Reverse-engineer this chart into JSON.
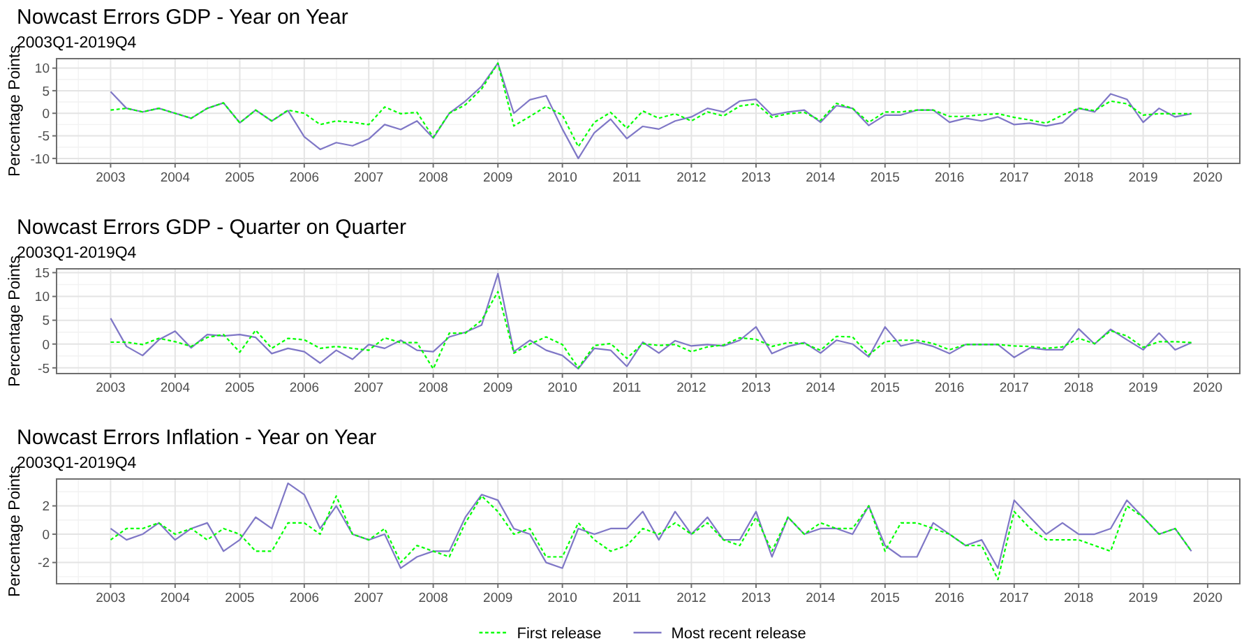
{
  "chart_data": [
    {
      "type": "line",
      "title": "Nowcast Errors GDP - Year on Year",
      "subtitle": "2003Q1-2019Q4",
      "ylabel": "Percentage Points",
      "x": [
        "2003-01",
        "2003-04",
        "2003-07",
        "2003-10",
        "2004-01",
        "2004-04",
        "2004-07",
        "2004-10",
        "2005-01",
        "2005-04",
        "2005-07",
        "2005-10",
        "2006-01",
        "2006-04",
        "2006-07",
        "2006-10",
        "2007-01",
        "2007-04",
        "2007-07",
        "2007-10",
        "2008-01",
        "2008-04",
        "2008-07",
        "2008-10",
        "2009-01",
        "2009-04",
        "2009-07",
        "2009-10",
        "2010-01",
        "2010-04",
        "2010-07",
        "2010-10",
        "2011-01",
        "2011-04",
        "2011-07",
        "2011-10",
        "2012-01",
        "2012-04",
        "2012-07",
        "2012-10",
        "2013-01",
        "2013-04",
        "2013-07",
        "2013-10",
        "2014-01",
        "2014-04",
        "2014-07",
        "2014-10",
        "2015-01",
        "2015-04",
        "2015-07",
        "2015-10",
        "2016-01",
        "2016-04",
        "2016-07",
        "2016-10",
        "2017-01",
        "2017-04",
        "2017-07",
        "2017-10",
        "2018-01",
        "2018-04",
        "2018-07",
        "2018-10",
        "2019-01",
        "2019-04",
        "2019-07",
        "2019-10"
      ],
      "xlim": [
        "2002-03",
        "2020-07"
      ],
      "xticks": [
        "2003",
        "2004",
        "2005",
        "2006",
        "2007",
        "2008",
        "2009",
        "2010",
        "2011",
        "2012",
        "2013",
        "2014",
        "2015",
        "2016",
        "2017",
        "2018",
        "2019",
        "2020"
      ],
      "ylim": [
        -11.1,
        12.1
      ],
      "yticks": [
        -10,
        -5,
        0,
        5,
        10
      ],
      "grid": true,
      "series": [
        {
          "color": "#00ff00",
          "line_style": "dashed",
          "values": [
            0.7,
            1.1,
            0.3,
            1.1,
            0,
            -1.1,
            1.1,
            2.3,
            -2.1,
            0.7,
            -1.7,
            0.7,
            0,
            -2.5,
            -1.7,
            -2.0,
            -2.5,
            1.4,
            -0.1,
            0.2,
            -5.3,
            0,
            1.9,
            5.4,
            11.1,
            -2.8,
            -0.7,
            1.5,
            -0.4,
            -7.4,
            -2.0,
            0.2,
            -3.3,
            0.5,
            -1.1,
            -0.1,
            -1.7,
            0.3,
            -0.6,
            1.6,
            2.1,
            -0.9,
            -0.1,
            0.2,
            -1.6,
            2.2,
            1.1,
            -2.0,
            0.3,
            0.3,
            0.7,
            0.7,
            -0.7,
            -0.7,
            -0.3,
            -0.1,
            -0.9,
            -1.5,
            -2.2,
            -0.4,
            1.1,
            0.6,
            2.7,
            2.1,
            -0.4,
            -0.1,
            -0.1,
            -0.1
          ]
        },
        {
          "color": "#7f77c6",
          "line_style": "solid",
          "values": [
            4.8,
            1.1,
            0.3,
            1.1,
            0,
            -1.1,
            1.1,
            2.3,
            -2.1,
            0.7,
            -1.7,
            0.6,
            -5.2,
            -8.0,
            -6.5,
            -7.2,
            -5.7,
            -2.5,
            -3.6,
            -1.7,
            -5.5,
            0,
            2.7,
            6.0,
            11.1,
            0,
            3.0,
            3.9,
            -3.5,
            -10.0,
            -4.3,
            -1.3,
            -5.6,
            -2.9,
            -3.5,
            -1.7,
            -0.8,
            1.1,
            0.3,
            2.7,
            3.1,
            -0.4,
            0.3,
            0.7,
            -2.0,
            1.7,
            1.1,
            -2.7,
            -0.4,
            -0.4,
            0.7,
            0.7,
            -2.0,
            -1.1,
            -1.7,
            -0.8,
            -2.5,
            -2.2,
            -2.8,
            -2.1,
            1.1,
            0.3,
            4.3,
            3.1,
            -2.0,
            1.1,
            -0.8,
            -0.1
          ]
        }
      ]
    },
    {
      "type": "line",
      "title": "Nowcast Errors GDP - Quarter on Quarter",
      "subtitle": "2003Q1-2019Q4",
      "ylabel": "Percentage Points",
      "x": [
        "2003-01",
        "2003-04",
        "2003-07",
        "2003-10",
        "2004-01",
        "2004-04",
        "2004-07",
        "2004-10",
        "2005-01",
        "2005-04",
        "2005-07",
        "2005-10",
        "2006-01",
        "2006-04",
        "2006-07",
        "2006-10",
        "2007-01",
        "2007-04",
        "2007-07",
        "2007-10",
        "2008-01",
        "2008-04",
        "2008-07",
        "2008-10",
        "2009-01",
        "2009-04",
        "2009-07",
        "2009-10",
        "2010-01",
        "2010-04",
        "2010-07",
        "2010-10",
        "2011-01",
        "2011-04",
        "2011-07",
        "2011-10",
        "2012-01",
        "2012-04",
        "2012-07",
        "2012-10",
        "2013-01",
        "2013-04",
        "2013-07",
        "2013-10",
        "2014-01",
        "2014-04",
        "2014-07",
        "2014-10",
        "2015-01",
        "2015-04",
        "2015-07",
        "2015-10",
        "2016-01",
        "2016-04",
        "2016-07",
        "2016-10",
        "2017-01",
        "2017-04",
        "2017-07",
        "2017-10",
        "2018-01",
        "2018-04",
        "2018-07",
        "2018-10",
        "2019-01",
        "2019-04",
        "2019-07",
        "2019-10"
      ],
      "xlim": [
        "2002-03",
        "2020-07"
      ],
      "xticks": [
        "2003",
        "2004",
        "2005",
        "2006",
        "2007",
        "2008",
        "2009",
        "2010",
        "2011",
        "2012",
        "2013",
        "2014",
        "2015",
        "2016",
        "2017",
        "2018",
        "2019",
        "2020"
      ],
      "ylim": [
        -6.2,
        15.8
      ],
      "yticks": [
        -5,
        0,
        5,
        10,
        15
      ],
      "grid": true,
      "series": [
        {
          "color": "#00ff00",
          "line_style": "dashed",
          "values": [
            0.4,
            0.4,
            -0.1,
            1.2,
            0.5,
            -0.5,
            1.4,
            2.0,
            -1.7,
            2.9,
            -0.9,
            1.2,
            0.9,
            -0.9,
            -0.5,
            -0.9,
            -1.3,
            1.3,
            0.3,
            0.3,
            -5.2,
            2.3,
            2.3,
            5.0,
            11.0,
            -1.9,
            0,
            1.5,
            -0.1,
            -5.0,
            -0.3,
            0.1,
            -3.0,
            0.1,
            -0.3,
            -0.1,
            -1.6,
            -0.6,
            -0.2,
            1.3,
            1.0,
            -0.5,
            0.3,
            0.1,
            -1.3,
            1.6,
            1.5,
            -2.3,
            0.5,
            0.8,
            0.8,
            0.1,
            -1.2,
            -0.1,
            -0.1,
            -0.1,
            -0.4,
            -0.5,
            -0.9,
            -0.6,
            1.2,
            0.1,
            2.8,
            1.7,
            -0.7,
            0.5,
            0.5,
            0.3
          ]
        },
        {
          "color": "#7f77c6",
          "line_style": "solid",
          "values": [
            5.4,
            -0.5,
            -2.4,
            0.9,
            2.7,
            -0.8,
            2.0,
            1.7,
            2.0,
            1.4,
            -2.0,
            -0.9,
            -1.6,
            -4.0,
            -1.3,
            -3.2,
            -0.1,
            -0.9,
            0.8,
            -1.3,
            -1.6,
            1.5,
            2.5,
            4.0,
            14.8,
            -1.6,
            0.8,
            -1.3,
            -2.4,
            -5.2,
            -0.9,
            -1.3,
            -4.7,
            0.4,
            -1.9,
            0.7,
            -0.4,
            -0.1,
            -0.4,
            0.8,
            3.6,
            -2.0,
            -0.5,
            0.3,
            -1.9,
            0.8,
            0,
            -2.7,
            3.6,
            -0.4,
            0.4,
            -0.5,
            -2.0,
            -0.1,
            -0.1,
            -0.1,
            -2.8,
            -0.8,
            -1.2,
            -1.2,
            3.2,
            0,
            3.1,
            0.9,
            -1.2,
            2.3,
            -1.2,
            0.3
          ]
        }
      ]
    },
    {
      "type": "line",
      "title": "Nowcast Errors Inflation - Year on Year",
      "subtitle": "2003Q1-2019Q4",
      "ylabel": "Percentage Points",
      "x": [
        "2003-01",
        "2003-04",
        "2003-07",
        "2003-10",
        "2004-01",
        "2004-04",
        "2004-07",
        "2004-10",
        "2005-01",
        "2005-04",
        "2005-07",
        "2005-10",
        "2006-01",
        "2006-04",
        "2006-07",
        "2006-10",
        "2007-01",
        "2007-04",
        "2007-07",
        "2007-10",
        "2008-01",
        "2008-04",
        "2008-07",
        "2008-10",
        "2009-01",
        "2009-04",
        "2009-07",
        "2009-10",
        "2010-01",
        "2010-04",
        "2010-07",
        "2010-10",
        "2011-01",
        "2011-04",
        "2011-07",
        "2011-10",
        "2012-01",
        "2012-04",
        "2012-07",
        "2012-10",
        "2013-01",
        "2013-04",
        "2013-07",
        "2013-10",
        "2014-01",
        "2014-04",
        "2014-07",
        "2014-10",
        "2015-01",
        "2015-04",
        "2015-07",
        "2015-10",
        "2016-01",
        "2016-04",
        "2016-07",
        "2016-10",
        "2017-01",
        "2017-04",
        "2017-07",
        "2017-10",
        "2018-01",
        "2018-04",
        "2018-07",
        "2018-10",
        "2019-01",
        "2019-04",
        "2019-07",
        "2019-10"
      ],
      "xlim": [
        "2002-03",
        "2020-07"
      ],
      "xticks": [
        "2003",
        "2004",
        "2005",
        "2006",
        "2007",
        "2008",
        "2009",
        "2010",
        "2011",
        "2012",
        "2013",
        "2014",
        "2015",
        "2016",
        "2017",
        "2018",
        "2019",
        "2020"
      ],
      "ylim": [
        -3.5,
        3.9
      ],
      "yticks": [
        -2,
        0,
        2
      ],
      "grid": true,
      "legend": "bottom",
      "series": [
        {
          "name": "First release",
          "color": "#00ff00",
          "line_style": "dashed",
          "values": [
            -0.4,
            0.4,
            0.4,
            0.8,
            0,
            0.4,
            -0.4,
            0.4,
            0,
            -1.2,
            -1.2,
            0.8,
            0.8,
            0,
            2.7,
            0,
            -0.4,
            0.4,
            -2.0,
            -0.8,
            -1.2,
            -1.6,
            0.8,
            2.7,
            1.6,
            0,
            0.4,
            -1.6,
            -1.6,
            0.8,
            -0.4,
            -1.2,
            -0.8,
            0.4,
            0,
            0.8,
            0,
            0.8,
            -0.4,
            -0.8,
            1.2,
            -1.2,
            1.2,
            0,
            0.8,
            0.4,
            0.4,
            2.0,
            -1.2,
            0.8,
            0.8,
            0.4,
            0,
            -0.8,
            -0.8,
            -3.2,
            1.6,
            0.4,
            -0.4,
            -0.4,
            -0.4,
            -0.8,
            -1.2,
            2.0,
            1.2,
            0,
            0.4,
            -1.2
          ]
        },
        {
          "name": "Most recent release",
          "color": "#7f77c6",
          "line_style": "solid",
          "values": [
            0.4,
            -0.4,
            0,
            0.8,
            -0.4,
            0.4,
            0.8,
            -1.2,
            -0.4,
            1.2,
            0.4,
            3.6,
            2.8,
            0.4,
            2.0,
            0,
            -0.4,
            0,
            -2.4,
            -1.6,
            -1.2,
            -1.2,
            1.2,
            2.8,
            2.4,
            0.4,
            0,
            -2.0,
            -2.4,
            0.4,
            0,
            0.4,
            0.4,
            1.6,
            -0.4,
            1.6,
            0,
            1.2,
            -0.4,
            -0.4,
            1.6,
            -1.6,
            1.2,
            0,
            0.4,
            0.4,
            0,
            2.0,
            -0.8,
            -1.6,
            -1.6,
            0.8,
            0,
            -0.8,
            -0.4,
            -2.4,
            2.4,
            1.2,
            0,
            0.8,
            0,
            0,
            0.4,
            2.4,
            1.2,
            0,
            0.4,
            -1.2
          ]
        }
      ]
    }
  ]
}
